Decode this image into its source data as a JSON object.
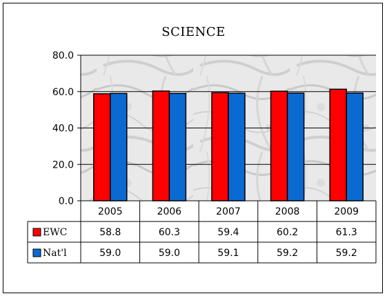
{
  "chart_data": {
    "type": "bar",
    "title": "SCIENCE",
    "categories": [
      "2005",
      "2006",
      "2007",
      "2008",
      "2009"
    ],
    "series": [
      {
        "name": "EWC",
        "values": [
          58.8,
          60.3,
          59.4,
          60.2,
          61.3
        ],
        "color": "#ff0000"
      },
      {
        "name": "Nat'l",
        "values": [
          59.0,
          59.0,
          59.1,
          59.2,
          59.2
        ],
        "color": "#0a6ad2"
      }
    ],
    "yticks": [
      "0.0",
      "20.0",
      "40.0",
      "60.0",
      "80.0"
    ],
    "ylim": [
      0,
      80
    ],
    "grid": true,
    "legend": "data-table",
    "table_values": [
      [
        "58.8",
        "60.3",
        "59.4",
        "60.2",
        "61.3"
      ],
      [
        "59.0",
        "59.0",
        "59.1",
        "59.2",
        "59.2"
      ]
    ]
  }
}
